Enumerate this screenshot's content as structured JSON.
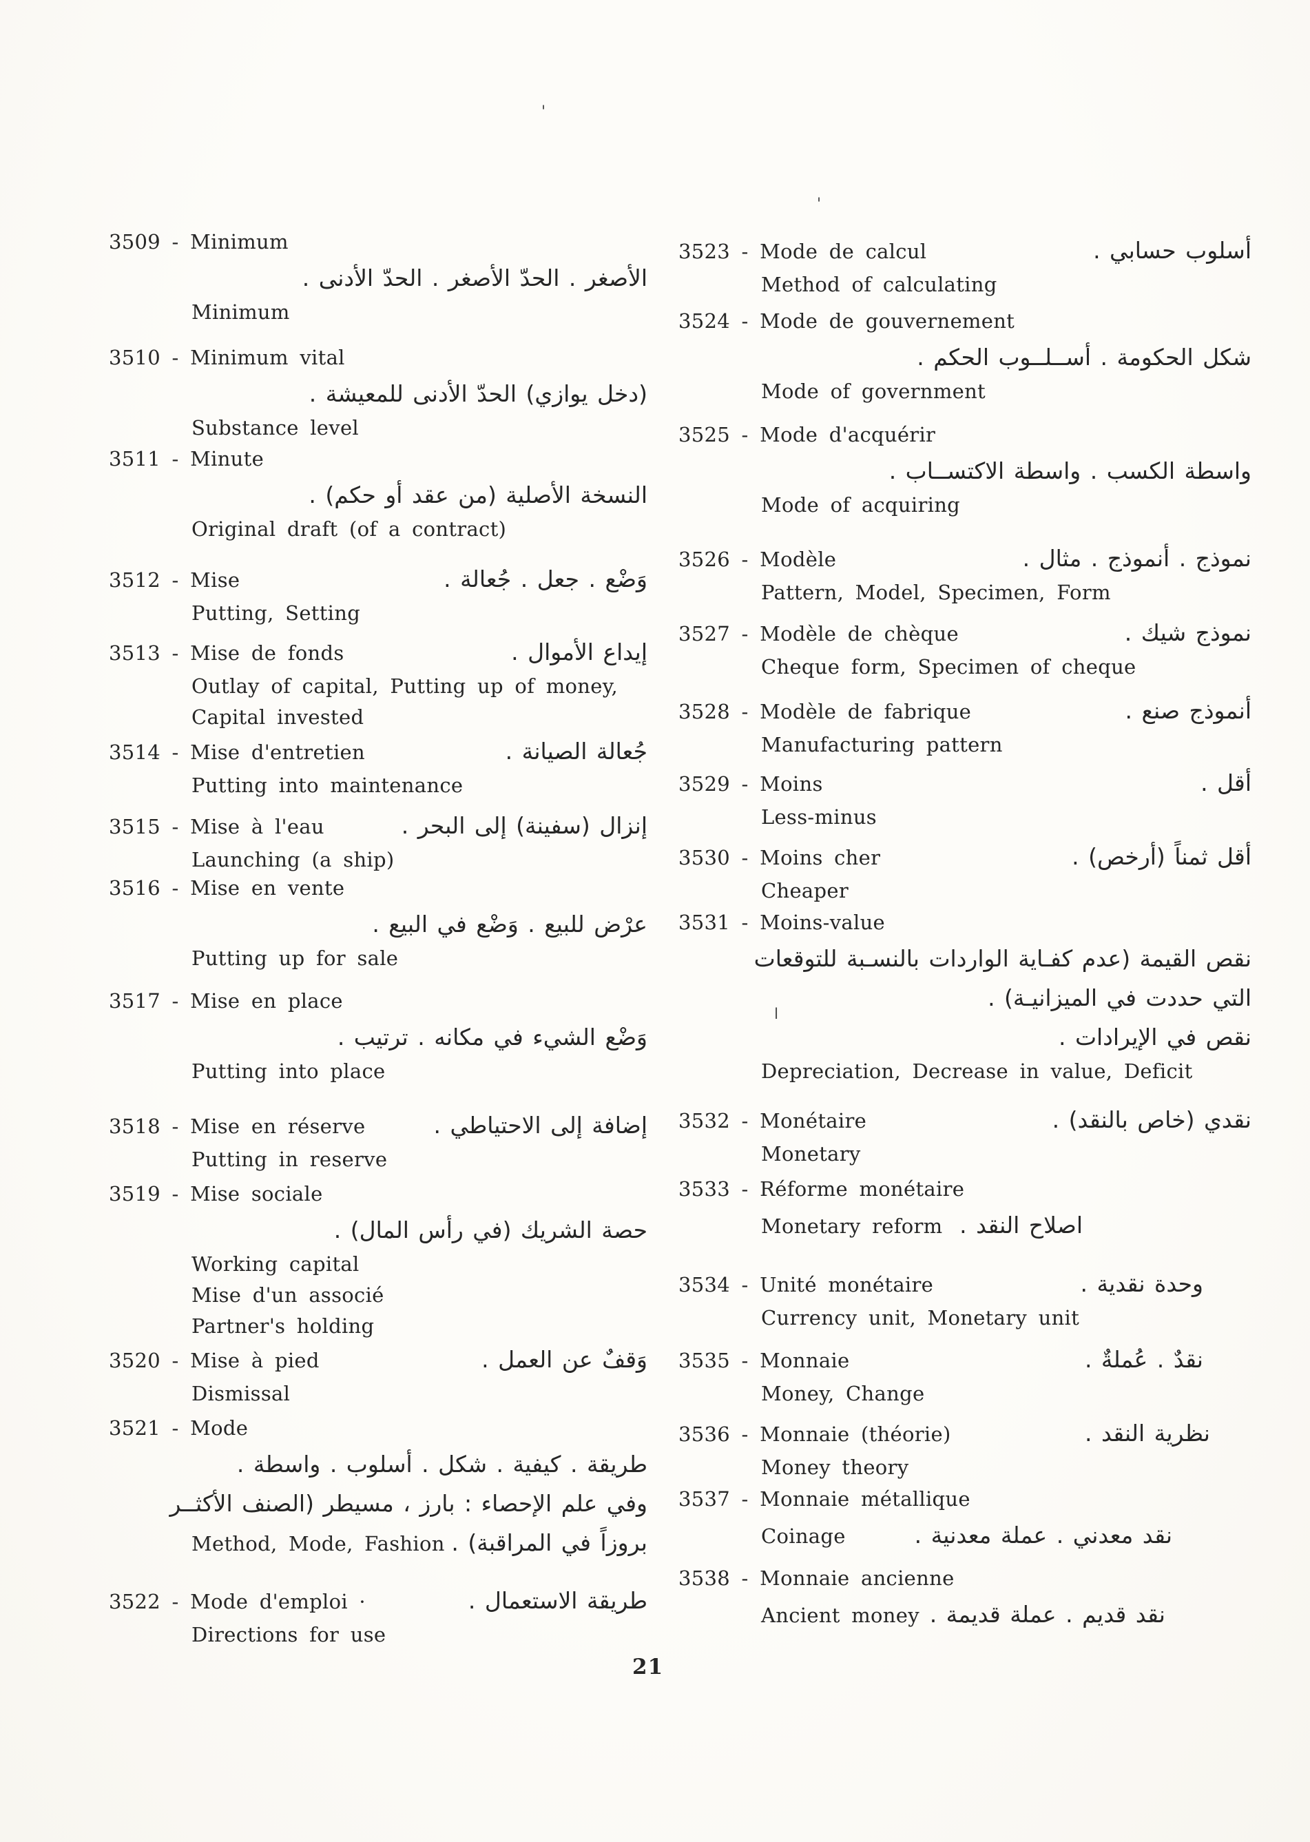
{
  "page": {
    "number": "21"
  },
  "colors": {
    "ink": "#262626",
    "paper": "#fdfcf9"
  },
  "columns": {
    "left": [
      {
        "id": "3509",
        "lines": [
          {
            "t": "head",
            "l": "3509 - Minimum"
          },
          {
            "t": "ar",
            "a": "الأصغر . الحدّ الأصغر . الحدّ الأدنى ."
          },
          {
            "t": "en",
            "l": "Minimum"
          }
        ]
      },
      {
        "id": "3510",
        "lines": [
          {
            "t": "head",
            "l": "3510 - Minimum vital"
          },
          {
            "t": "ar",
            "a": "(دخل يوازي) الحدّ الأدنى للمعيشة ."
          },
          {
            "t": "en",
            "l": "Substance level"
          }
        ]
      },
      {
        "id": "3511",
        "lines": [
          {
            "t": "head",
            "l": "3511 - Minute"
          },
          {
            "t": "ar",
            "a": "النسخة الأصلية (من عقد أو حكم) ."
          },
          {
            "t": "en",
            "l": "Original draft (of a contract)"
          }
        ]
      },
      {
        "id": "3512",
        "lines": [
          {
            "t": "head",
            "l": "3512 - Mise",
            "a": "وَضْع . جعل . جُعالة ."
          },
          {
            "t": "en",
            "l": "Putting, Setting"
          }
        ]
      },
      {
        "id": "3513",
        "lines": [
          {
            "t": "head",
            "l": "3513 - Mise de fonds",
            "a": "إيداع الأموال ."
          },
          {
            "t": "en",
            "l": "Outlay of capital, Putting up of money,"
          },
          {
            "t": "en",
            "l": "Capital invested"
          }
        ]
      },
      {
        "id": "3514",
        "lines": [
          {
            "t": "head",
            "l": "3514 - Mise d'entretien",
            "a": "جُعالة الصيانة ."
          },
          {
            "t": "en",
            "l": "Putting into maintenance"
          }
        ]
      },
      {
        "id": "3515",
        "lines": [
          {
            "t": "head",
            "l": "3515 - Mise à l'eau",
            "a": "إنزال (سفينة) إلى البحر ."
          },
          {
            "t": "en",
            "l": "Launching (a ship)"
          }
        ]
      },
      {
        "id": "3516",
        "lines": [
          {
            "t": "head",
            "l": "3516 - Mise en vente"
          },
          {
            "t": "ar",
            "a": "عرْض للبيع . وَضْع في البيع ."
          },
          {
            "t": "en",
            "l": "Putting up for sale"
          }
        ]
      },
      {
        "id": "3517",
        "lines": [
          {
            "t": "head",
            "l": "3517 - Mise en place"
          },
          {
            "t": "ar",
            "a": "وَضْع الشيء في مكانه . ترتيب ."
          },
          {
            "t": "en",
            "l": "Putting into place"
          }
        ]
      },
      {
        "id": "3518",
        "lines": [
          {
            "t": "head",
            "l": "3518 - Mise en réserve",
            "a": "إضافة إلى الاحتياطي ."
          },
          {
            "t": "en",
            "l": "Putting in reserve"
          }
        ]
      },
      {
        "id": "3519",
        "lines": [
          {
            "t": "head",
            "l": "3519 - Mise sociale"
          },
          {
            "t": "ar",
            "a": "حصة الشريك (في رأس المال) ."
          },
          {
            "t": "en",
            "l": "Working capital"
          },
          {
            "t": "en",
            "l": "Mise d'un associé"
          },
          {
            "t": "en",
            "l": "Partner's holding"
          }
        ]
      },
      {
        "id": "3520",
        "lines": [
          {
            "t": "head",
            "l": "3520 - Mise à pied",
            "a": "وَقفٌ عن العمل ."
          },
          {
            "t": "en",
            "l": "Dismissal"
          }
        ]
      },
      {
        "id": "3521",
        "lines": [
          {
            "t": "head",
            "l": "3521 - Mode"
          },
          {
            "t": "ar",
            "a": "طريقة . كيفية . شكل . أسلوب . واسطة ."
          },
          {
            "t": "ar",
            "a": "وفي علم الإحصاء : بارز ، مسيطر (الصنف الأكثــر"
          },
          {
            "t": "mix",
            "l": "Method, Mode, Fashion",
            "a": "بروزاً في المراقبة) ."
          }
        ]
      },
      {
        "id": "3522",
        "lines": [
          {
            "t": "head",
            "l": "3522 - Mode d'emploi ·",
            "a": "طريقة الاستعمال ."
          },
          {
            "t": "en",
            "l": "Directions for use"
          }
        ]
      }
    ],
    "right": [
      {
        "id": "3523",
        "lines": [
          {
            "t": "head",
            "l": "3523 - Mode de calcul",
            "a": "أسلوب حسابي ."
          },
          {
            "t": "en",
            "l": "Method of calculating"
          }
        ]
      },
      {
        "id": "3524",
        "lines": [
          {
            "t": "head",
            "l": "3524 - Mode de gouvernement"
          },
          {
            "t": "ar",
            "a": "شكل الحكومة . أســلــوب الحكم ."
          },
          {
            "t": "en",
            "l": "Mode of government"
          }
        ]
      },
      {
        "id": "3525",
        "lines": [
          {
            "t": "head",
            "l": "3525 - Mode d'acquérir"
          },
          {
            "t": "ar",
            "a": "واسطة الكسب . واسطة الاكتســاب ."
          },
          {
            "t": "en",
            "l": "Mode of acquiring"
          }
        ]
      },
      {
        "id": "3526",
        "lines": [
          {
            "t": "head",
            "l": "3526 - Modèle",
            "a": "نموذج . أنموذج . مثال ."
          },
          {
            "t": "en",
            "l": "Pattern, Model, Specimen, Form"
          }
        ]
      },
      {
        "id": "3527",
        "lines": [
          {
            "t": "head",
            "l": "3527 - Modèle de chèque",
            "a": "نموذج شيك ."
          },
          {
            "t": "en",
            "l": "Cheque form, Specimen of cheque"
          }
        ]
      },
      {
        "id": "3528",
        "lines": [
          {
            "t": "head",
            "l": "3528 - Modèle de fabrique",
            "a": "أنموذج صنع ."
          },
          {
            "t": "en",
            "l": "Manufacturing pattern"
          }
        ]
      },
      {
        "id": "3529",
        "lines": [
          {
            "t": "head",
            "l": "3529 - Moins",
            "a": "أقل ."
          },
          {
            "t": "en",
            "l": "Less-minus"
          }
        ]
      },
      {
        "id": "3530",
        "lines": [
          {
            "t": "head",
            "l": "3530 - Moins cher",
            "a": "أقل ثمناً (أرخص) ."
          },
          {
            "t": "en",
            "l": "Cheaper"
          }
        ]
      },
      {
        "id": "3531",
        "lines": [
          {
            "t": "head",
            "l": "3531 - Moins-value"
          },
          {
            "t": "ar",
            "a": "نقص القيمة (عدم كفـاية الواردات بالنسـبة للتوقعات"
          },
          {
            "t": "ar",
            "a": "التي حددت في الميزانيـة) ."
          },
          {
            "t": "ar",
            "a": "نقص في الإيرادات ."
          },
          {
            "t": "en",
            "l": "Depreciation, Decrease in value, Deficit"
          }
        ]
      },
      {
        "id": "3532",
        "lines": [
          {
            "t": "head",
            "l": "3532 - Monétaire",
            "a": "نقدي (خاص بالنقد) ."
          },
          {
            "t": "en",
            "l": "Monetary"
          }
        ]
      },
      {
        "id": "3533",
        "lines": [
          {
            "t": "head",
            "l": "3533 - Réforme monétaire"
          },
          {
            "t": "mix",
            "l": "Monetary reform",
            "a": "اصلاح النقد ."
          }
        ]
      },
      {
        "id": "3534",
        "lines": [
          {
            "t": "head",
            "l": "3534 - Unité monétaire",
            "a": "وحدة نقدية ."
          },
          {
            "t": "en",
            "l": "Currency unit, Monetary unit"
          }
        ]
      },
      {
        "id": "3535",
        "lines": [
          {
            "t": "head",
            "l": "3535 - Monnaie",
            "a": "نقدٌ . عُملةٌ ."
          },
          {
            "t": "en",
            "l": "Money, Change"
          }
        ]
      },
      {
        "id": "3536",
        "lines": [
          {
            "t": "head",
            "l": "3536 - Monnaie (théorie)",
            "a": "نظرية النقد ."
          },
          {
            "t": "en",
            "l": "Money theory"
          }
        ]
      },
      {
        "id": "3537",
        "lines": [
          {
            "t": "head",
            "l": "3537 - Monnaie métallique"
          },
          {
            "t": "mix",
            "l": "Coinage",
            "a": "نقد معدني . عملة معدنية ."
          }
        ]
      },
      {
        "id": "3538",
        "lines": [
          {
            "t": "head",
            "l": "3538 - Monnaie ancienne"
          },
          {
            "t": "mix",
            "l": "Ancient money",
            "a": "نقد قديم . عملة قديمة ."
          }
        ]
      }
    ]
  },
  "stray_marks": [
    {
      "glyph": "'"
    },
    {
      "glyph": "'"
    },
    {
      "glyph": "ا"
    }
  ]
}
